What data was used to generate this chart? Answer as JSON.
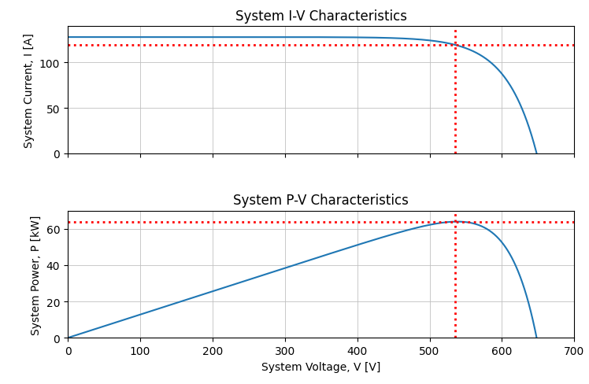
{
  "title_iv": "System I-V Characteristics",
  "title_pv": "System P-V Characteristics",
  "xlabel": "System Voltage, V [V]",
  "ylabel_iv": "System Current, I [A]",
  "ylabel_pv": "System Power, P [kW]",
  "Isc": 128.0,
  "Voc": 648.0,
  "Vmpp": 535.0,
  "Impp": 119.5,
  "Pmpp": 63.9,
  "V_range": [
    0,
    700
  ],
  "I_ylim": [
    0,
    140
  ],
  "P_ylim": [
    0,
    70
  ],
  "I_yticks": [
    0,
    50,
    100
  ],
  "P_yticks": [
    0,
    20,
    40,
    60
  ],
  "curve_color": "#1f77b4",
  "mpp_color": "red",
  "grid_color": "#c0c0c0",
  "background_color": "white",
  "title_fontsize": 12,
  "label_fontsize": 10,
  "tick_fontsize": 10,
  "figsize": [
    7.48,
    4.89
  ],
  "dpi": 100
}
